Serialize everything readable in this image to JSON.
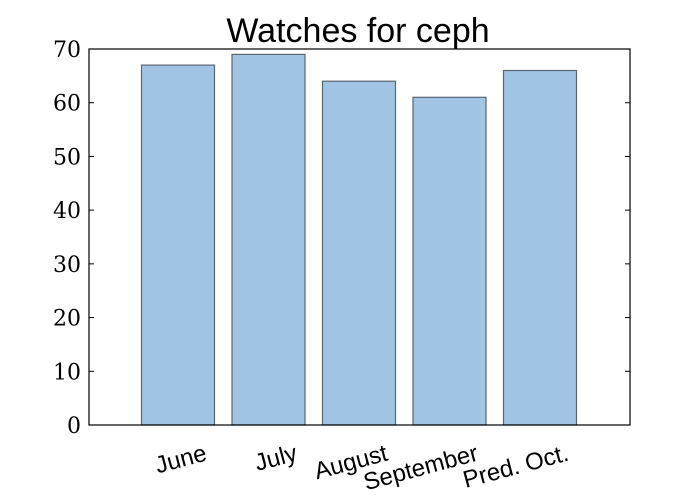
{
  "chart_data": {
    "type": "bar",
    "title": "Watches for ceph",
    "xlabel": "",
    "ylabel": "",
    "categories": [
      "June",
      "July",
      "August",
      "September",
      "Pred. Oct."
    ],
    "values": [
      67,
      69,
      64,
      61,
      66
    ],
    "ylim": [
      0,
      70
    ],
    "yticks": [
      0,
      10,
      20,
      30,
      40,
      50,
      60,
      70
    ],
    "grid": false,
    "bar_color": "#a1c3e4",
    "bar_edge_color": "#5a6670"
  }
}
